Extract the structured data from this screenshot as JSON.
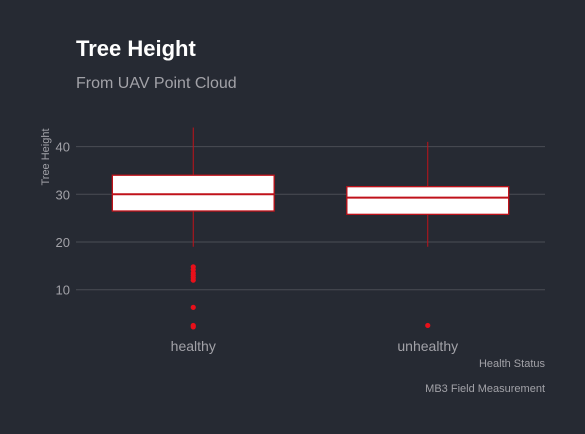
{
  "colors": {
    "background": "#262a33",
    "grid": "#4a4d55",
    "box_stroke": "#c0121a",
    "box_fill": "#ffffff",
    "outlier": "#e8101a",
    "text": "#a2a2a8",
    "title": "#ffffff"
  },
  "chart_data": {
    "type": "boxplot",
    "title": "Tree Height",
    "subtitle": "From UAV Point Cloud",
    "xlabel": "Health Status",
    "ylabel": "Tree Height",
    "caption": "MB3 Field Measurement",
    "ylim": [
      0.5,
      46
    ],
    "yticks": [
      10,
      20,
      30,
      40
    ],
    "grid": true,
    "categories": [
      "healthy",
      "unhealthy"
    ],
    "boxes": [
      {
        "category": "healthy",
        "whisker_low": 19,
        "q1": 26.5,
        "median": 30,
        "q3": 34,
        "whisker_high": 44,
        "outliers": [
          2.2,
          2.5,
          6.3,
          12.0,
          12.5,
          13.0,
          13.5,
          14.2,
          14.8
        ]
      },
      {
        "category": "unhealthy",
        "whisker_low": 19,
        "q1": 25.8,
        "median": 29.3,
        "q3": 31.6,
        "whisker_high": 41,
        "outliers": [
          2.5
        ]
      }
    ]
  }
}
